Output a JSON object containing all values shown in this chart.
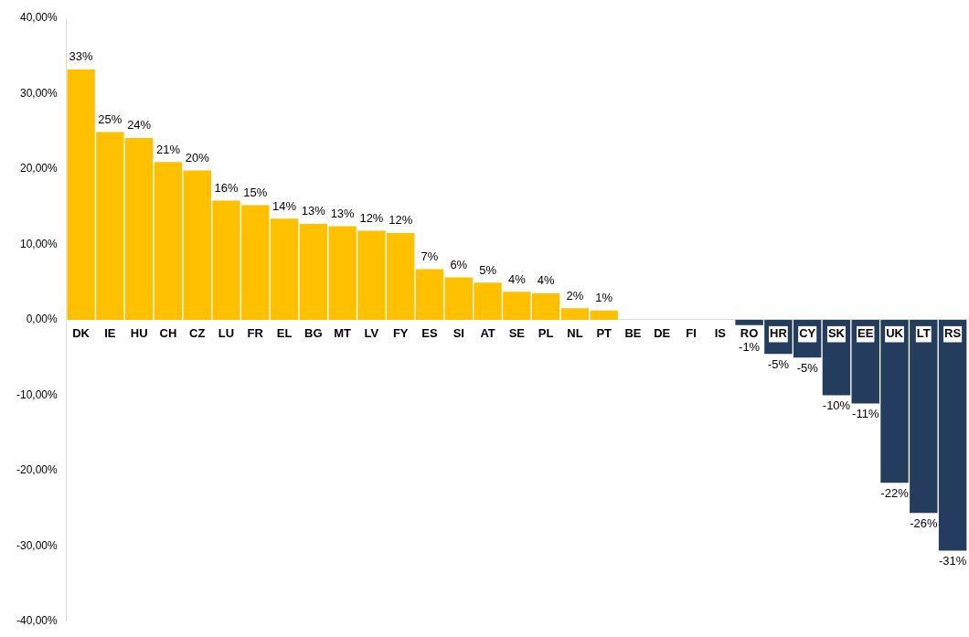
{
  "chart_data": {
    "type": "bar",
    "categories": [
      "DK",
      "IE",
      "HU",
      "CH",
      "CZ",
      "LU",
      "FR",
      "EL",
      "BG",
      "MT",
      "LV",
      "FY",
      "ES",
      "SI",
      "AT",
      "SE",
      "PL",
      "NL",
      "PT",
      "BE",
      "DE",
      "FI",
      "IS",
      "RO",
      "HR",
      "CY",
      "SK",
      "EE",
      "UK",
      "LT",
      "RS"
    ],
    "values": [
      33.3,
      25.0,
      24.2,
      21.0,
      19.9,
      15.9,
      15.3,
      13.5,
      12.8,
      12.5,
      11.9,
      11.6,
      6.8,
      5.7,
      5.0,
      3.8,
      3.6,
      1.6,
      1.3,
      null,
      null,
      null,
      null,
      -0.8,
      -4.6,
      -5.1,
      -10.1,
      -11.2,
      -21.7,
      -25.7,
      -30.7
    ],
    "value_labels": [
      "33%",
      "25%",
      "24%",
      "21%",
      "20%",
      "16%",
      "15%",
      "14%",
      "13%",
      "13%",
      "12%",
      "12%",
      "7%",
      "6%",
      "5%",
      "4%",
      "4%",
      "2%",
      "1%",
      null,
      null,
      null,
      null,
      "-1%",
      "-5%",
      "-5%",
      "-10%",
      "-11%",
      "-22%",
      "-26%",
      "-31%"
    ],
    "colors": [
      "#ffc000",
      "#ffc000",
      "#ffc000",
      "#ffc000",
      "#ffc000",
      "#ffc000",
      "#ffc000",
      "#ffc000",
      "#ffc000",
      "#ffc000",
      "#ffc000",
      "#ffc000",
      "#ffc000",
      "#ffc000",
      "#ffc000",
      "#ffc000",
      "#ffc000",
      "#ffc000",
      "#ffc000",
      "#ffc000",
      "#ffc000",
      "#ffc000",
      "#ffc000",
      "#243d5e",
      "#243d5e",
      "#243d5e",
      "#243d5e",
      "#243d5e",
      "#243d5e",
      "#243d5e",
      "#243d5e"
    ],
    "ylim": [
      -40,
      40
    ],
    "yticks": [
      {
        "value": -40,
        "label": "-40,00%"
      },
      {
        "value": -30,
        "label": "-30,00%"
      },
      {
        "value": -20,
        "label": "-20,00%"
      },
      {
        "value": -10,
        "label": "-10,00%"
      },
      {
        "value": 0,
        "label": "0,00%"
      },
      {
        "value": 10,
        "label": "10,00%"
      },
      {
        "value": 20,
        "label": "20,00%"
      },
      {
        "value": 30,
        "label": "30,00%"
      },
      {
        "value": 40,
        "label": "40,00%"
      }
    ],
    "grid": false,
    "legend": false
  }
}
